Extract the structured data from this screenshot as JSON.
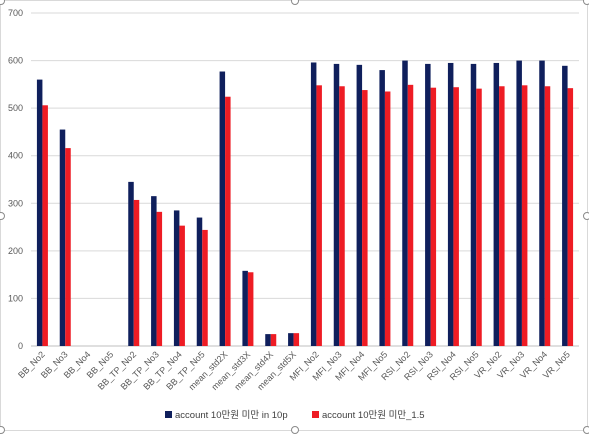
{
  "chart_data": {
    "type": "bar",
    "categories": [
      "BB_No2",
      "BB_No3",
      "BB_No4",
      "BB_No5",
      "BB_TP_No2",
      "BB_TP_No3",
      "BB_TP_No4",
      "BB_TP_No5",
      "mean_std2X",
      "mean_std3X",
      "mean_std4X",
      "mean_std5X",
      "MFI_No2",
      "MFI_No3",
      "MFI_No4",
      "MFI_No5",
      "RSI_No2",
      "RSI_No3",
      "RSI_No4",
      "RSI_No5",
      "VR_No2",
      "VR_No3",
      "VR_No4",
      "VR_No5"
    ],
    "series": [
      {
        "name": "account 10만원 미만 in 10p",
        "color": "#0f1f5c",
        "values": [
          560,
          455,
          null,
          null,
          345,
          315,
          285,
          270,
          577,
          158,
          25,
          27,
          596,
          593,
          591,
          580,
          600,
          593,
          595,
          593,
          595,
          600,
          600,
          589
        ]
      },
      {
        "name": "account 10만원 미만_1.5",
        "color": "#ee1c24",
        "values": [
          506,
          416,
          null,
          null,
          307,
          282,
          253,
          244,
          524,
          155,
          25,
          27,
          548,
          546,
          538,
          535,
          549,
          543,
          544,
          541,
          546,
          548,
          546,
          542
        ]
      }
    ],
    "yticks": [
      0,
      100,
      200,
      300,
      400,
      500,
      600,
      700
    ],
    "ylim": [
      0,
      700
    ],
    "grid": true,
    "legend_position": "bottom"
  }
}
